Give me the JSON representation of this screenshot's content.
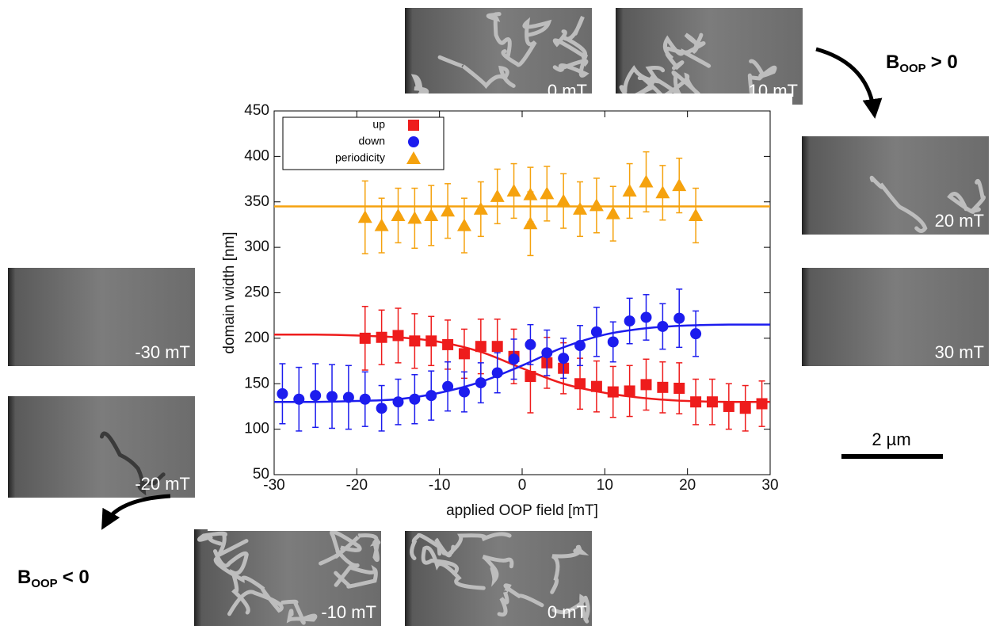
{
  "chart_data": {
    "type": "scatter",
    "xlabel": "applied OOP field [mT]",
    "ylabel": "domain width [nm]",
    "xlim": [
      -30,
      30
    ],
    "xticks": [
      -30,
      -20,
      -10,
      0,
      10,
      20,
      30
    ],
    "ylim": [
      50,
      450
    ],
    "yticks": [
      50,
      100,
      150,
      200,
      250,
      300,
      350,
      400,
      450
    ],
    "series": [
      {
        "name": "up",
        "color": "#ee1c1c",
        "marker": "square",
        "x": [
          -19,
          -17,
          -15,
          -13,
          -11,
          -9,
          -7,
          -5,
          -3,
          -1,
          1,
          3,
          5,
          7,
          9,
          11,
          13,
          15,
          17,
          19,
          21,
          23,
          25,
          27,
          29
        ],
        "values": [
          200,
          201,
          203,
          197,
          197,
          193,
          183,
          191,
          191,
          180,
          158,
          173,
          167,
          150,
          147,
          141,
          142,
          149,
          146,
          145,
          130,
          130,
          125,
          123,
          128
        ],
        "errors": [
          35,
          30,
          30,
          30,
          27,
          27,
          27,
          30,
          30,
          30,
          40,
          28,
          28,
          28,
          28,
          28,
          28,
          28,
          28,
          28,
          25,
          25,
          25,
          25,
          25
        ]
      },
      {
        "name": "down",
        "color": "#1c1cee",
        "marker": "circle",
        "x": [
          -29,
          -27,
          -25,
          -23,
          -21,
          -19,
          -17,
          -15,
          -13,
          -11,
          -9,
          -7,
          -5,
          -3,
          -1,
          1,
          3,
          5,
          7,
          9,
          11,
          13,
          15,
          17,
          19,
          21
        ],
        "values": [
          139,
          133,
          137,
          136,
          135,
          133,
          123,
          130,
          133,
          137,
          147,
          141,
          151,
          162,
          177,
          193,
          184,
          178,
          192,
          207,
          196,
          219,
          223,
          213,
          222,
          205
        ],
        "errors": [
          33,
          35,
          35,
          35,
          35,
          30,
          25,
          25,
          27,
          27,
          27,
          22,
          22,
          22,
          22,
          22,
          25,
          22,
          22,
          27,
          22,
          25,
          25,
          25,
          32,
          25
        ]
      },
      {
        "name": "periodicity",
        "color": "#f5a20e",
        "marker": "triangle",
        "x": [
          -19,
          -17,
          -15,
          -13,
          -11,
          -9,
          -7,
          -5,
          -3,
          -1,
          1,
          1,
          3,
          5,
          7,
          9,
          11,
          13,
          15,
          17,
          19,
          21
        ],
        "values": [
          333,
          324,
          335,
          332,
          335,
          340,
          324,
          342,
          356,
          362,
          358,
          326,
          359,
          351,
          342,
          346,
          337,
          362,
          372,
          360,
          368,
          335
        ],
        "errors": [
          40,
          30,
          30,
          33,
          33,
          30,
          30,
          30,
          30,
          30,
          30,
          35,
          30,
          30,
          30,
          30,
          30,
          30,
          33,
          30,
          30,
          30
        ]
      }
    ],
    "fits": [
      {
        "color": "#ee1c1c",
        "x": [
          -30,
          -25,
          -20,
          -15,
          -10,
          -5,
          0,
          5,
          10,
          15,
          20,
          25,
          30
        ],
        "values": [
          204,
          204,
          203,
          201,
          196,
          185,
          167,
          150,
          140,
          134,
          131,
          130,
          130
        ]
      },
      {
        "color": "#1c1cee",
        "x": [
          -30,
          -25,
          -20,
          -15,
          -10,
          -5,
          0,
          5,
          10,
          15,
          20,
          25,
          30
        ],
        "values": [
          130,
          130,
          131,
          133,
          140,
          152,
          170,
          190,
          204,
          211,
          214,
          215,
          215
        ]
      },
      {
        "color": "#f5a20e",
        "x": [
          -30,
          30
        ],
        "values": [
          345,
          345
        ]
      }
    ]
  },
  "panels": [
    "0 mT",
    "10 mT",
    "20 mT",
    "30 mT",
    "-30 mT",
    "-20 mT",
    "-10 mT",
    "0 mT"
  ],
  "annotations": {
    "positive": {
      "symbol": "B",
      "subscript": "OOP",
      "relation": "> 0"
    },
    "negative": {
      "symbol": "B",
      "subscript": "OOP",
      "relation": "< 0"
    },
    "scale_bar": "2 µm"
  }
}
